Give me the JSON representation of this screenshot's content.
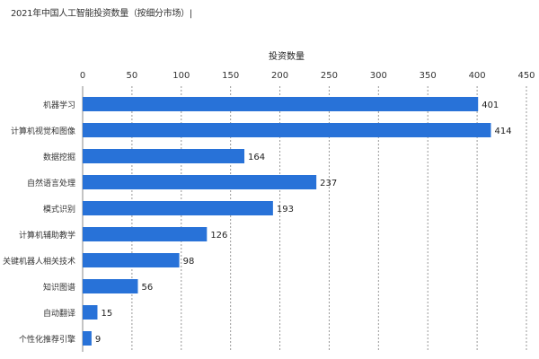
{
  "chart_data": {
    "type": "bar",
    "orientation": "horizontal",
    "title": "2021年中国人工智能投资数量（按细分市场）|",
    "xlabel": "投资数量",
    "ylabel": "",
    "xlim": [
      0,
      450
    ],
    "xticks": [
      0,
      50,
      100,
      150,
      200,
      250,
      300,
      350,
      400,
      450
    ],
    "categories": [
      "机器学习",
      "计算机视觉和图像",
      "数据挖掘",
      "自然语言处理",
      "模式识别",
      "计算机辅助教学",
      "关键机器人相关技术",
      "知识图谱",
      "自动翻译",
      "个性化推荐引擎"
    ],
    "values": [
      401,
      414,
      164,
      237,
      193,
      126,
      98,
      56,
      15,
      9
    ],
    "grid": "vertical-dashed",
    "axis_position": "top",
    "bar_color": "#2872d8"
  }
}
